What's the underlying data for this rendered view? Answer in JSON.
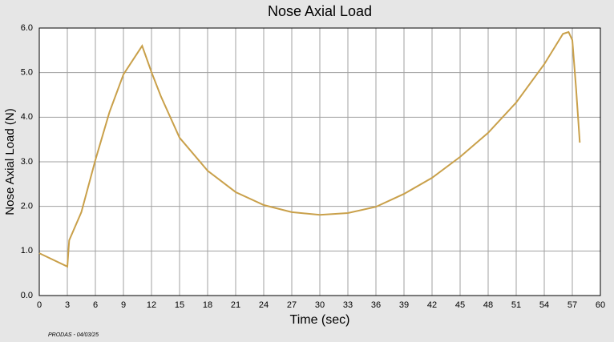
{
  "chart_data": {
    "type": "line",
    "title": "Nose Axial Load",
    "x_label": "Time (sec)",
    "y_label": "Nose Axial Load (N)",
    "footnote": "PRODAS - 04/03/25",
    "color": "#c9a04a",
    "grid": true,
    "x": [
      0,
      3.0,
      3.2,
      4.5,
      6,
      7.5,
      9,
      10,
      11,
      12,
      13,
      15,
      18,
      21,
      24,
      27,
      30,
      33,
      36,
      39,
      42,
      45,
      48,
      51,
      54,
      56,
      56.6,
      57,
      57.4,
      57.8
    ],
    "values": [
      0.95,
      0.65,
      1.24,
      1.87,
      3.04,
      4.11,
      4.96,
      5.28,
      5.6,
      5.01,
      4.47,
      3.54,
      2.8,
      2.32,
      2.03,
      1.87,
      1.81,
      1.85,
      1.99,
      2.28,
      2.64,
      3.11,
      3.65,
      4.33,
      5.19,
      5.87,
      5.91,
      5.73,
      4.65,
      3.43
    ],
    "xlim": [
      0,
      60
    ],
    "xticks": [
      0,
      3,
      6,
      9,
      12,
      15,
      18,
      21,
      24,
      27,
      30,
      33,
      36,
      39,
      42,
      45,
      48,
      51,
      54,
      57,
      60
    ],
    "ylim": [
      0,
      6
    ],
    "yticks": [
      {
        "value": 0,
        "label": "0.0"
      },
      {
        "value": 1,
        "label": "1.0"
      },
      {
        "value": 2,
        "label": "2.0"
      },
      {
        "value": 3,
        "label": "3.0"
      },
      {
        "value": 4,
        "label": "4.0"
      },
      {
        "value": 5,
        "label": "5.0"
      },
      {
        "value": 6,
        "label": "6.0"
      }
    ]
  }
}
